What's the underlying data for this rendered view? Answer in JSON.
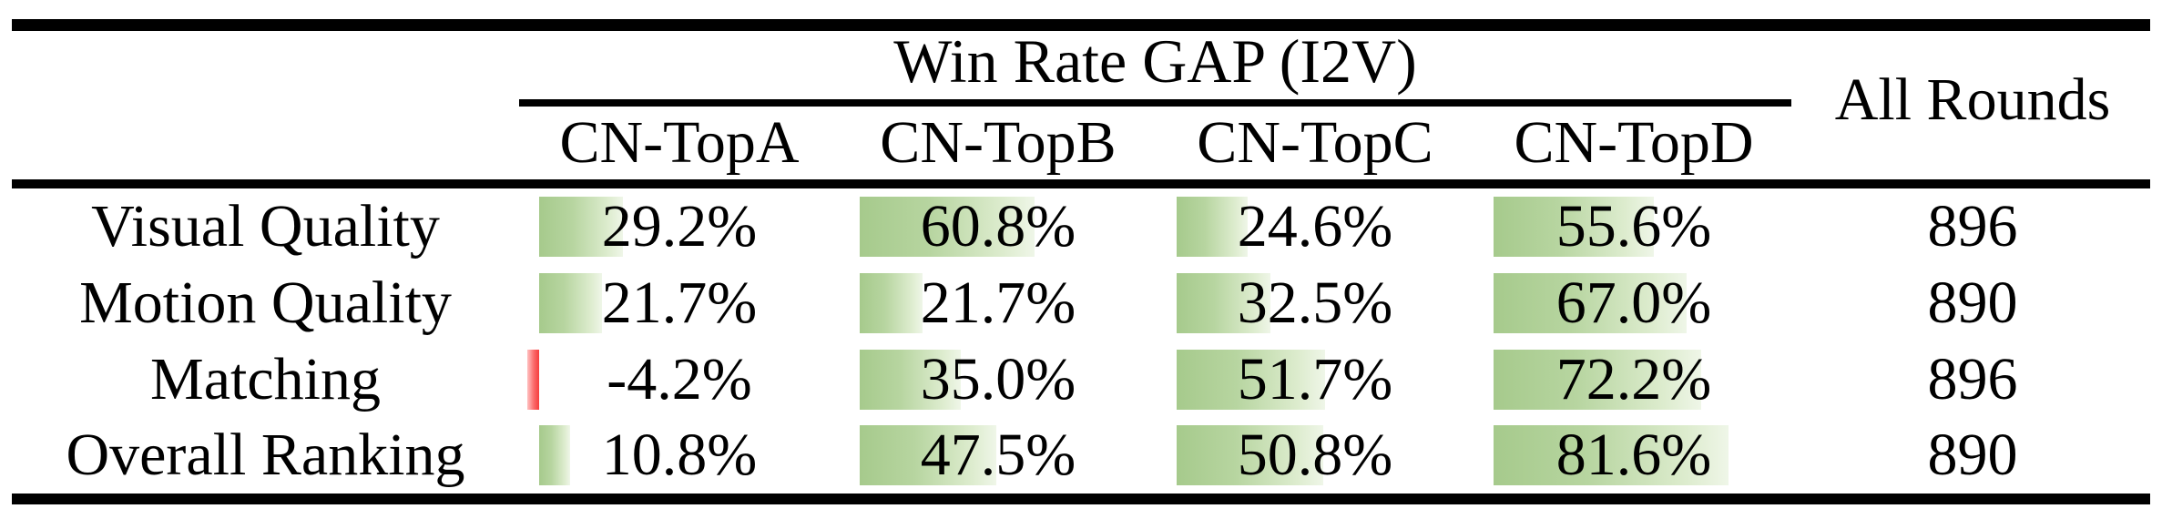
{
  "header": {
    "group_title": "Win Rate GAP (I2V)",
    "columns": [
      "CN-TopA",
      "CN-TopB",
      "CN-TopC",
      "CN-TopD"
    ],
    "all_rounds_label": "All Rounds"
  },
  "rows": [
    {
      "label": "Visual Quality",
      "cells": [
        {
          "value": 29.2,
          "display": "29.2%"
        },
        {
          "value": 60.8,
          "display": "60.8%"
        },
        {
          "value": 24.6,
          "display": "24.6%"
        },
        {
          "value": 55.6,
          "display": "55.6%"
        }
      ],
      "all_rounds": "896"
    },
    {
      "label": "Motion Quality",
      "cells": [
        {
          "value": 21.7,
          "display": "21.7%"
        },
        {
          "value": 21.7,
          "display": "21.7%"
        },
        {
          "value": 32.5,
          "display": "32.5%"
        },
        {
          "value": 67.0,
          "display": "67.0%"
        }
      ],
      "all_rounds": "890"
    },
    {
      "label": "Matching",
      "cells": [
        {
          "value": -4.2,
          "display": "-4.2%"
        },
        {
          "value": 35.0,
          "display": "35.0%"
        },
        {
          "value": 51.7,
          "display": "51.7%"
        },
        {
          "value": 72.2,
          "display": "72.2%"
        }
      ],
      "all_rounds": "896"
    },
    {
      "label": "Overall Ranking",
      "cells": [
        {
          "value": 10.8,
          "display": "10.8%"
        },
        {
          "value": 47.5,
          "display": "47.5%"
        },
        {
          "value": 50.8,
          "display": "50.8%"
        },
        {
          "value": 81.6,
          "display": "81.6%"
        }
      ],
      "all_rounds": "890"
    }
  ],
  "colors": {
    "bar_positive_start": "#a6ca8c",
    "bar_positive_end": "#eff6e8",
    "bar_negative": "#f63e3e",
    "text": "#000000"
  }
}
